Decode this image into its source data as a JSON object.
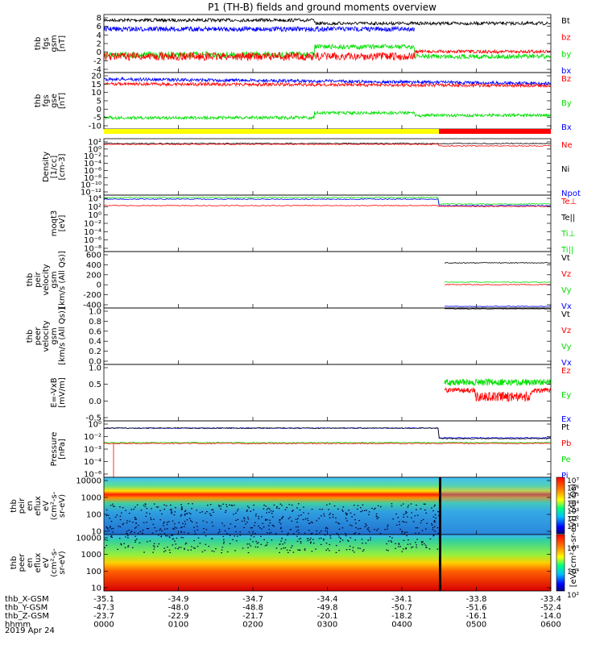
{
  "title": "P1 (TH-B) fields and ground moments overview",
  "colors": {
    "black": "#000000",
    "red": "#ff0000",
    "green": "#00e000",
    "blue": "#0000ff",
    "yellow": "#ffff00"
  },
  "chart_data": {
    "type": "line",
    "panels": [
      {
        "id": "fgs-gsm",
        "ylabel": [
          "thb",
          "fgs",
          "gsm",
          "[nT]"
        ],
        "yticks": [
          "8",
          "6",
          "4",
          "2",
          "0",
          "-2",
          "-4"
        ],
        "legend": [
          {
            "text": "Bt",
            "color": "black"
          },
          {
            "text": "bz",
            "color": "red"
          },
          {
            "text": "by",
            "color": "green"
          },
          {
            "text": "bx",
            "color": "blue"
          }
        ]
      },
      {
        "id": "fgs-gse",
        "ylabel": [
          "thb",
          "fgs",
          "gse",
          "[nT]"
        ],
        "yticks": [
          "20",
          "15",
          "10",
          "5",
          "0",
          "-5",
          "-10"
        ],
        "legend": [
          {
            "text": "Bz",
            "color": "red"
          },
          {
            "text": "By",
            "color": "green"
          },
          {
            "text": "Bx",
            "color": "blue"
          }
        ]
      },
      {
        "id": "density",
        "ylabel": [
          "Density",
          "[1/cc]",
          "[cm-3]"
        ],
        "yticks": [
          "10²",
          "10⁰",
          "10⁻²",
          "10⁻⁴",
          "10⁻⁶",
          "10⁻⁸",
          "10⁻¹⁰",
          "10⁻¹²"
        ],
        "legend": [
          {
            "text": "Ne",
            "color": "red"
          },
          {
            "text": "Ni",
            "color": "black"
          },
          {
            "text": "Npot",
            "color": "blue"
          }
        ]
      },
      {
        "id": "temperature",
        "ylabel": [
          "moqt3",
          "[eV]"
        ],
        "yticks": [
          "10⁴",
          "10²",
          "10⁰",
          "10⁻²",
          "10⁻⁴",
          "10⁻⁶",
          "10⁻⁸"
        ],
        "legend": [
          {
            "text": "Te⊥",
            "color": "red"
          },
          {
            "text": "Te||",
            "color": "black"
          },
          {
            "text": "Ti⊥",
            "color": "green"
          },
          {
            "text": "Ti||",
            "color": "green"
          }
        ]
      },
      {
        "id": "velocity-gsm",
        "ylabel": [
          "thb",
          "peir",
          "velocity",
          "gsm",
          "[km/s (All Qs)]"
        ],
        "yticks": [
          "600",
          "400",
          "200",
          "0",
          "-200",
          "-400"
        ],
        "legend": [
          {
            "text": "Vt",
            "color": "black"
          },
          {
            "text": "Vz",
            "color": "red"
          },
          {
            "text": "Vy",
            "color": "green"
          },
          {
            "text": "Vx",
            "color": "blue"
          }
        ]
      },
      {
        "id": "velocity-peer",
        "ylabel": [
          "thb",
          "peer",
          "velocity",
          "gsm",
          "[km/s (All Qs)]"
        ],
        "yticks": [
          "1.0",
          "0.8",
          "0.6",
          "0.4",
          "0.2",
          "0.0"
        ],
        "legend": [
          {
            "text": "Vt",
            "color": "black"
          },
          {
            "text": "Vz",
            "color": "red"
          },
          {
            "text": "Vy",
            "color": "green"
          },
          {
            "text": "Vx",
            "color": "blue"
          }
        ]
      },
      {
        "id": "efield",
        "ylabel": [
          "E=-VxB",
          "[mV/m]"
        ],
        "yticks": [
          "1.0",
          "0.5",
          "0.0",
          "-0.5"
        ],
        "legend": [
          {
            "text": "Ez",
            "color": "red"
          },
          {
            "text": "Ey",
            "color": "green"
          },
          {
            "text": "Ex",
            "color": "blue"
          }
        ]
      },
      {
        "id": "pressure",
        "ylabel": [
          "Pressure",
          "[nPa]"
        ],
        "yticks": [
          "10⁰",
          "10⁻²",
          "10⁻³",
          "10⁻⁴",
          "10⁻⁶"
        ],
        "legend": [
          {
            "text": "Pt",
            "color": "black"
          },
          {
            "text": "Pb",
            "color": "red"
          },
          {
            "text": "Pe",
            "color": "green"
          },
          {
            "text": "Pi",
            "color": "blue"
          }
        ]
      },
      {
        "id": "peir-eflux",
        "ylabel": [
          "thb",
          "peir",
          "en",
          "eflux",
          "eV",
          "(cm²-s-",
          "sr-eV)"
        ],
        "yticks": [
          "10000",
          "1000",
          "100",
          "10"
        ],
        "legend": []
      },
      {
        "id": "peer-eflux",
        "ylabel": [
          "thb",
          "peer",
          "en",
          "eflux",
          "eV",
          "(cm²-s-",
          "sr-eV)"
        ],
        "yticks": [
          "10000",
          "1000",
          "100",
          "10"
        ],
        "legend": []
      }
    ],
    "colorbar": {
      "label": "[eV/(cm²-s-sr-eV)] (All Qs)",
      "top_ticks": [
        "10⁷",
        "10⁶",
        "10⁵",
        "10⁴",
        "10³",
        "10²",
        "10¹"
      ],
      "bottom_ticks": [
        "10⁶",
        "10⁴",
        "10²"
      ]
    },
    "xaxis": {
      "rows": [
        {
          "label": "thb_X-GSM",
          "values": [
            "-35.1",
            "-34.9",
            "-34.7",
            "-34.4",
            "-34.1",
            "-33.8",
            "-33.4"
          ]
        },
        {
          "label": "thb_Y-GSM",
          "values": [
            "-47.3",
            "-48.0",
            "-48.8",
            "-49.8",
            "-50.7",
            "-51.6",
            "-52.4"
          ]
        },
        {
          "label": "thb_Z-GSM",
          "values": [
            "-23.7",
            "-22.9",
            "-21.7",
            "-20.1",
            "-18.2",
            "-16.1",
            "-14.0"
          ]
        },
        {
          "label": "hhmm",
          "values": [
            "0000",
            "0100",
            "0200",
            "0300",
            "0400",
            "0500",
            "0600"
          ]
        }
      ],
      "date": "2019 Apr 24"
    }
  }
}
